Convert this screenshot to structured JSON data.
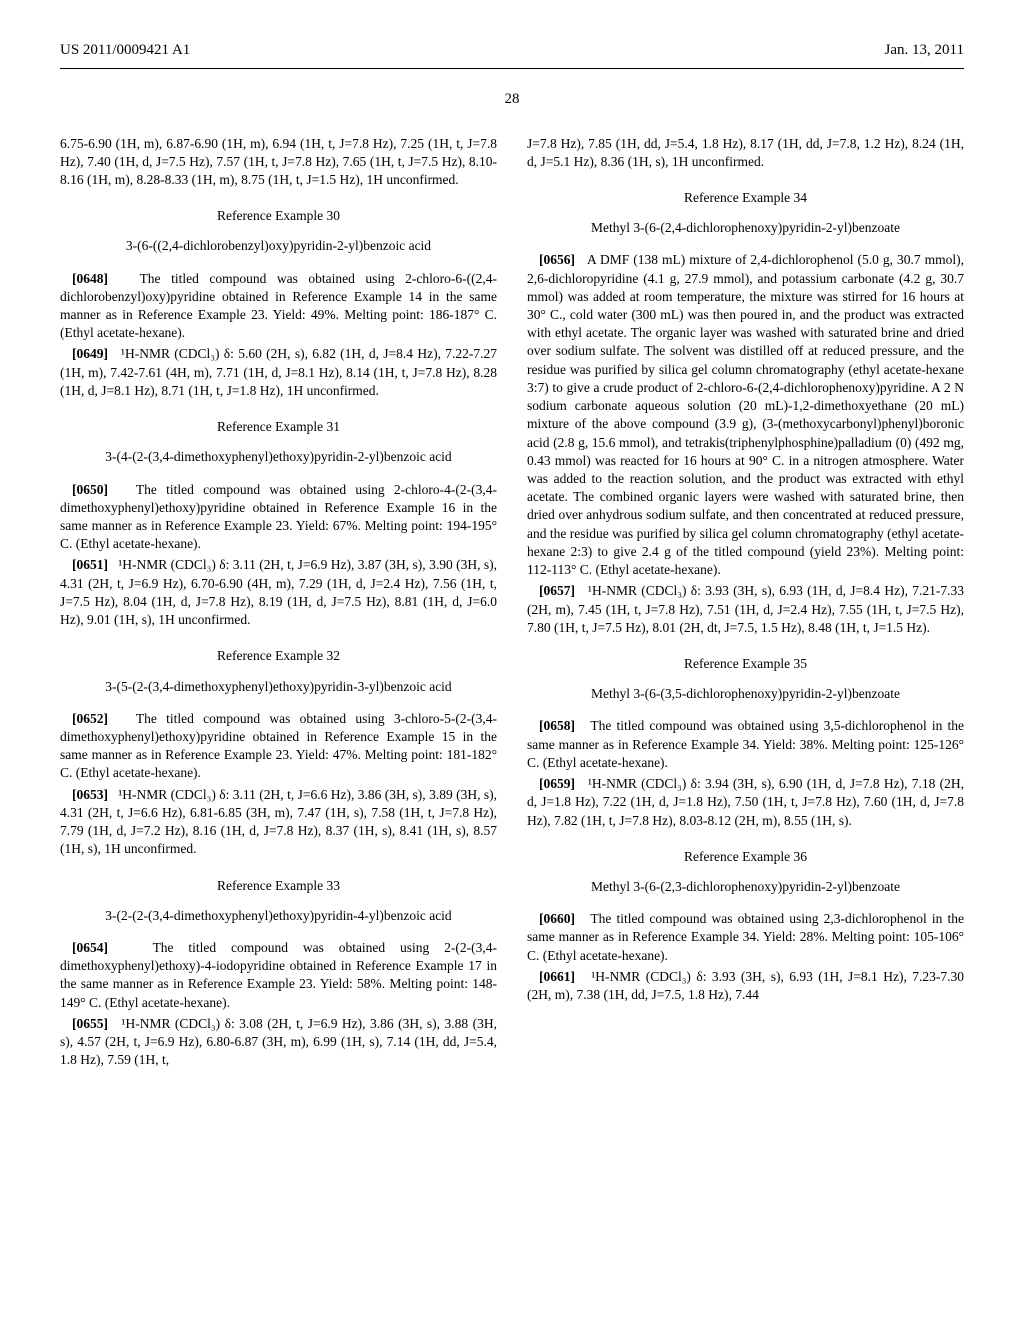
{
  "header": {
    "left": "US 2011/0009421 A1",
    "right": "Jan. 13, 2011"
  },
  "page_number": "28",
  "left_column": {
    "p1": "6.75-6.90 (1H, m), 6.87-6.90 (1H, m), 6.94 (1H, t, J=7.8 Hz), 7.25 (1H, t, J=7.8 Hz), 7.40 (1H, d, J=7.5 Hz), 7.57 (1H, t, J=7.8 Hz), 7.65 (1H, t, J=7.5 Hz), 8.10-8.16 (1H, m), 8.28-8.33 (1H, m), 8.75 (1H, t, J=1.5 Hz), 1H unconfirmed.",
    "ref30_title": "Reference Example 30",
    "ref30_compound": "3-(6-((2,4-dichlorobenzyl)oxy)pyridin-2-yl)benzoic acid",
    "p0648_num": "[0648]",
    "p0648": "The titled compound was obtained using 2-chloro-6-((2,4-dichlorobenzyl)oxy)pyridine obtained in Reference Example 14 in the same manner as in Reference Example 23. Yield: 49%. Melting point: 186-187° C. (Ethyl acetate-hexane).",
    "p0649_num": "[0649]",
    "p0649": "¹H-NMR (CDCl₃) δ: 5.60 (2H, s), 6.82 (1H, d, J=8.4 Hz), 7.22-7.27 (1H, m), 7.42-7.61 (4H, m), 7.71 (1H, d, J=8.1 Hz), 8.14 (1H, t, J=7.8 Hz), 8.28 (1H, d, J=8.1 Hz), 8.71 (1H, t, J=1.8 Hz), 1H unconfirmed.",
    "ref31_title": "Reference Example 31",
    "ref31_compound": "3-(4-(2-(3,4-dimethoxyphenyl)ethoxy)pyridin-2-yl)benzoic acid",
    "p0650_num": "[0650]",
    "p0650": "The titled compound was obtained using 2-chloro-4-(2-(3,4-dimethoxyphenyl)ethoxy)pyridine obtained in Reference Example 16 in the same manner as in Reference Example 23. Yield: 67%. Melting point: 194-195° C. (Ethyl acetate-hexane).",
    "p0651_num": "[0651]",
    "p0651": "¹H-NMR (CDCl₃) δ: 3.11 (2H, t, J=6.9 Hz), 3.87 (3H, s), 3.90 (3H, s), 4.31 (2H, t, J=6.9 Hz), 6.70-6.90 (4H, m), 7.29 (1H, d, J=2.4 Hz), 7.56 (1H, t, J=7.5 Hz), 8.04 (1H, d, J=7.8 Hz), 8.19 (1H, d, J=7.5 Hz), 8.81 (1H, d, J=6.0 Hz), 9.01 (1H, s), 1H unconfirmed.",
    "ref32_title": "Reference Example 32",
    "ref32_compound": "3-(5-(2-(3,4-dimethoxyphenyl)ethoxy)pyridin-3-yl)benzoic acid",
    "p0652_num": "[0652]",
    "p0652": "The titled compound was obtained using 3-chloro-5-(2-(3,4-dimethoxyphenyl)ethoxy)pyridine obtained in Reference Example 15 in the same manner as in Reference Example 23. Yield: 47%. Melting point: 181-182° C. (Ethyl acetate-hexane).",
    "p0653_num": "[0653]",
    "p0653": "¹H-NMR (CDCl₃) δ: 3.11 (2H, t, J=6.6 Hz), 3.86 (3H, s), 3.89 (3H, s), 4.31 (2H, t, J=6.6 Hz), 6.81-6.85 (3H, m), 7.47 (1H, s), 7.58 (1H, t, J=7.8 Hz), 7.79 (1H, d, J=7.2 Hz), 8.16 (1H, d, J=7.8 Hz), 8.37 (1H, s), 8.41 (1H, s), 8.57 (1H, s), 1H unconfirmed.",
    "ref33_title": "Reference Example 33",
    "ref33_compound": "3-(2-(2-(3,4-dimethoxyphenyl)ethoxy)pyridin-4-yl)benzoic acid",
    "p0654_num": "[0654]",
    "p0654": "The titled compound was obtained using 2-(2-(3,4-dimethoxyphenyl)ethoxy)-4-iodopyridine obtained in Reference Example 17 in the same manner as in Reference Example 23. Yield: 58%. Melting point: 148-149° C. (Ethyl acetate-hexane).",
    "p0655_num": "[0655]",
    "p0655": "¹H-NMR (CDCl₃) δ: 3.08 (2H, t, J=6.9 Hz), 3.86 (3H, s), 3.88 (3H, s), 4.57 (2H, t, J=6.9 Hz), 6.80-6.87 (3H, m), 6.99 (1H, s), 7.14 (1H, dd, J=5.4, 1.8 Hz), 7.59 (1H, t,"
  },
  "right_column": {
    "p_cont": "J=7.8 Hz), 7.85 (1H, dd, J=5.4, 1.8 Hz), 8.17 (1H, dd, J=7.8, 1.2 Hz), 8.24 (1H, d, J=5.1 Hz), 8.36 (1H, s), 1H unconfirmed.",
    "ref34_title": "Reference Example 34",
    "ref34_compound": "Methyl 3-(6-(2,4-dichlorophenoxy)pyridin-2-yl)benzoate",
    "p0656_num": "[0656]",
    "p0656": "A DMF (138 mL) mixture of 2,4-dichlorophenol (5.0 g, 30.7 mmol), 2,6-dichloropyridine (4.1 g, 27.9 mmol), and potassium carbonate (4.2 g, 30.7 mmol) was added at room temperature, the mixture was stirred for 16 hours at 30° C., cold water (300 mL) was then poured in, and the product was extracted with ethyl acetate. The organic layer was washed with saturated brine and dried over sodium sulfate. The solvent was distilled off at reduced pressure, and the residue was purified by silica gel column chromatography (ethyl acetate-hexane 3:7) to give a crude product of 2-chloro-6-(2,4-dichlorophenoxy)pyridine. A 2 N sodium carbonate aqueous solution (20 mL)-1,2-dimethoxyethane (20 mL) mixture of the above compound (3.9 g), (3-(methoxycarbonyl)phenyl)boronic acid (2.8 g, 15.6 mmol), and tetrakis(triphenylphosphine)palladium (0) (492 mg, 0.43 mmol) was reacted for 16 hours at 90° C. in a nitrogen atmosphere. Water was added to the reaction solution, and the product was extracted with ethyl acetate. The combined organic layers were washed with saturated brine, then dried over anhydrous sodium sulfate, and then concentrated at reduced pressure, and the residue was purified by silica gel column chromatography (ethyl acetate-hexane 2:3) to give 2.4 g of the titled compound (yield 23%). Melting point: 112-113° C. (Ethyl acetate-hexane).",
    "p0657_num": "[0657]",
    "p0657": "¹H-NMR (CDCl₃) δ: 3.93 (3H, s), 6.93 (1H, d, J=8.4 Hz), 7.21-7.33 (2H, m), 7.45 (1H, t, J=7.8 Hz), 7.51 (1H, d, J=2.4 Hz), 7.55 (1H, t, J=7.5 Hz), 7.80 (1H, t, J=7.5 Hz), 8.01 (2H, dt, J=7.5, 1.5 Hz), 8.48 (1H, t, J=1.5 Hz).",
    "ref35_title": "Reference Example 35",
    "ref35_compound": "Methyl 3-(6-(3,5-dichlorophenoxy)pyridin-2-yl)benzoate",
    "p0658_num": "[0658]",
    "p0658": "The titled compound was obtained using 3,5-dichlorophenol in the same manner as in Reference Example 34. Yield: 38%. Melting point: 125-126° C. (Ethyl acetate-hexane).",
    "p0659_num": "[0659]",
    "p0659": "¹H-NMR (CDCl₃) δ: 3.94 (3H, s), 6.90 (1H, d, J=7.8 Hz), 7.18 (2H, d, J=1.8 Hz), 7.22 (1H, d, J=1.8 Hz), 7.50 (1H, t, J=7.8 Hz), 7.60 (1H, d, J=7.8 Hz), 7.82 (1H, t, J=7.8 Hz), 8.03-8.12 (2H, m), 8.55 (1H, s).",
    "ref36_title": "Reference Example 36",
    "ref36_compound": "Methyl 3-(6-(2,3-dichlorophenoxy)pyridin-2-yl)benzoate",
    "p0660_num": "[0660]",
    "p0660": "The titled compound was obtained using 2,3-dichlorophenol in the same manner as in Reference Example 34. Yield: 28%. Melting point: 105-106° C. (Ethyl acetate-hexane).",
    "p0661_num": "[0661]",
    "p0661": "¹H-NMR (CDCl₃) δ: 3.93 (3H, s), 6.93 (1H, J=8.1 Hz), 7.23-7.30 (2H, m), 7.38 (1H, dd, J=7.5, 1.8 Hz), 7.44"
  }
}
